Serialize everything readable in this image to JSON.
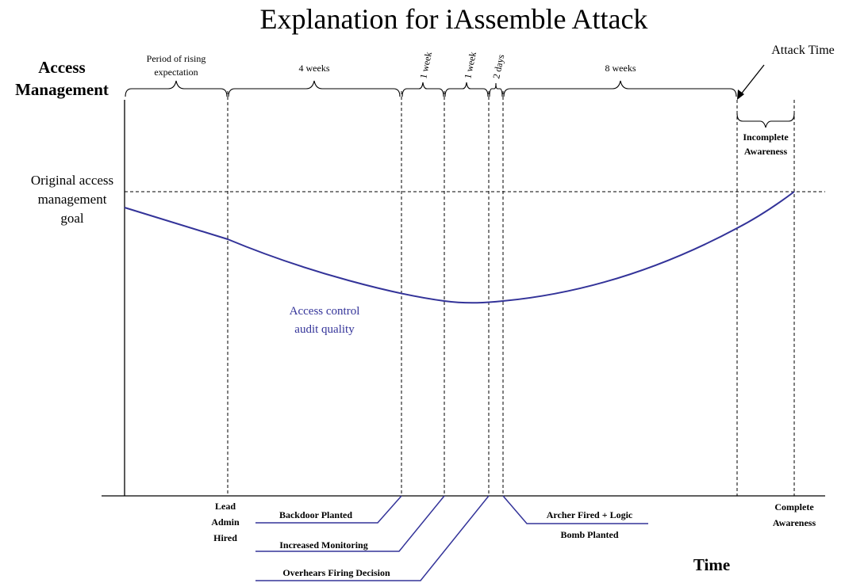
{
  "title": "Explanation for iAssemble Attack",
  "y_axis": {
    "line1": "Access",
    "line2": "Management"
  },
  "x_axis": {
    "label": "Time"
  },
  "goal_label": {
    "line1": "Original access",
    "line2": "management",
    "line3": "goal"
  },
  "curve_label": {
    "line1": "Access control",
    "line2": "audit quality"
  },
  "intervals": {
    "rising": {
      "line1": "Period of rising",
      "line2": "expectation"
    },
    "four_weeks": "4 weeks",
    "week_a": "1 week",
    "week_b": "1 week",
    "two_days": "2 days",
    "eight_weeks": "8 weeks",
    "incomplete": {
      "line1": "Incomplete",
      "line2": "Awareness"
    }
  },
  "attack_time": "Attack Time",
  "events": {
    "lead_admin": {
      "line1": "Lead",
      "line2": "Admin",
      "line3": "Hired"
    },
    "backdoor": "Backdoor Planted",
    "monitoring": "Increased Monitoring",
    "overhears": "Overhears Firing Decision",
    "archer": {
      "line1": "Archer Fired + Logic",
      "line2": "Bomb Planted"
    },
    "complete": {
      "line1": "Complete",
      "line2": "Awareness"
    }
  },
  "colors": {
    "curve": "#333399",
    "text": "#000000",
    "background": "#ffffff"
  }
}
